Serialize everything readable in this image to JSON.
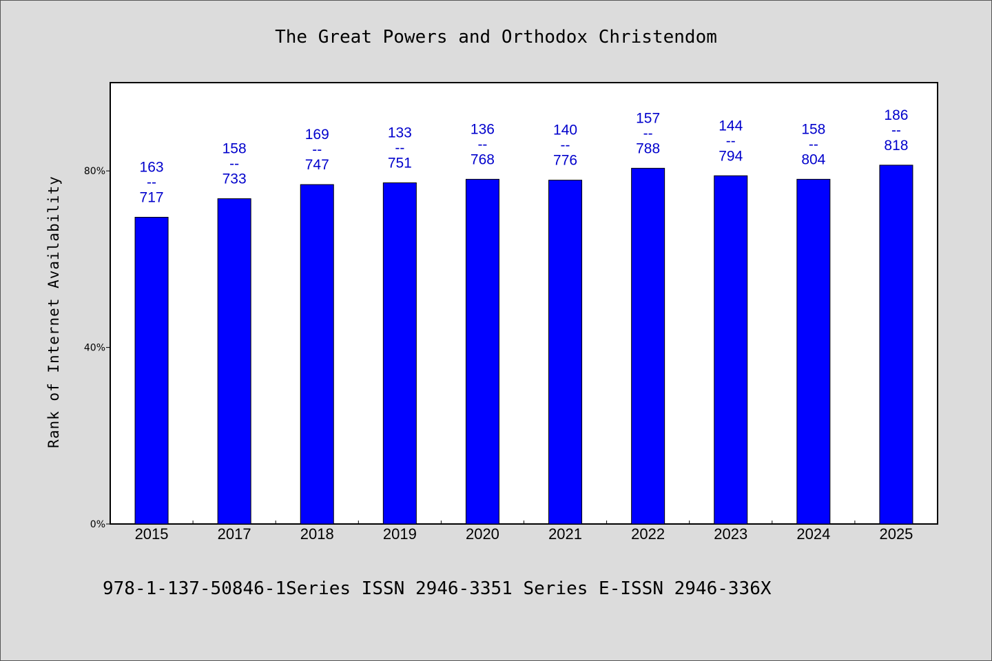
{
  "chart_data": {
    "type": "bar",
    "title": "The Great Powers and Orthodox Christendom",
    "ylabel": "Rank of Internet Availability",
    "xlabel": "",
    "ylim": [
      0,
      100
    ],
    "yticks": [
      {
        "value": 0,
        "label": "0%"
      },
      {
        "value": 40,
        "label": "40%"
      },
      {
        "value": 80,
        "label": "80%"
      }
    ],
    "categories": [
      "2015",
      "2017",
      "2018",
      "2019",
      "2020",
      "2021",
      "2022",
      "2023",
      "2024",
      "2025"
    ],
    "values": [
      69.5,
      73.7,
      76.9,
      77.3,
      78.1,
      77.9,
      80.6,
      78.9,
      78.1,
      81.3
    ],
    "data_labels": [
      [
        "163",
        "--",
        "717"
      ],
      [
        "158",
        "--",
        "733"
      ],
      [
        "169",
        "--",
        "747"
      ],
      [
        "133",
        "--",
        "751"
      ],
      [
        "136",
        "--",
        "768"
      ],
      [
        "140",
        "--",
        "776"
      ],
      [
        "157",
        "--",
        "788"
      ],
      [
        "144",
        "--",
        "794"
      ],
      [
        "158",
        "--",
        "804"
      ],
      [
        "186",
        "--",
        "818"
      ]
    ],
    "grid": false,
    "legend": "none"
  },
  "footer": "978-1-137-50846-1Series ISSN 2946-3351 Series E-ISSN 2946-336X",
  "colors": {
    "bar": "#0000ff",
    "bar_edge": "#000000",
    "label": "#0000cc",
    "background": "#dcdcdc",
    "plot_background": "#ffffff"
  }
}
